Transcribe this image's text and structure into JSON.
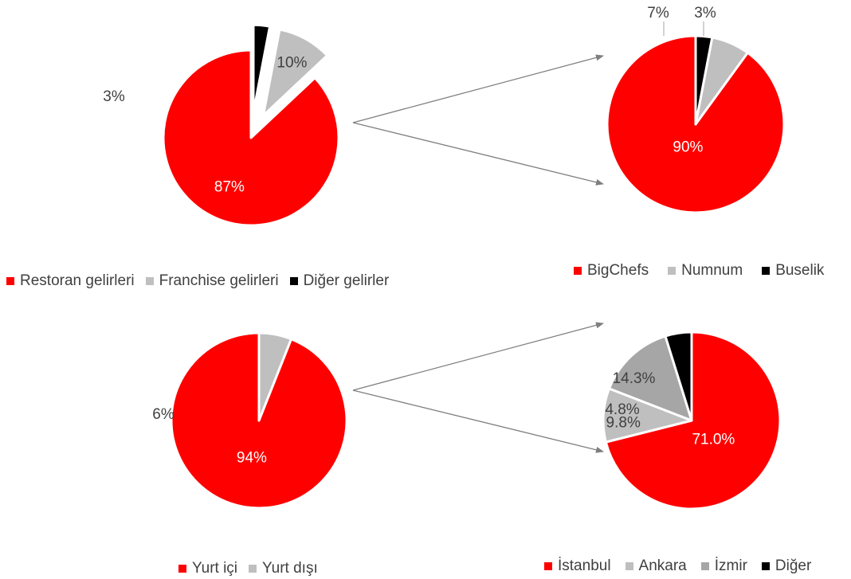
{
  "colors": {
    "red": "#ff0000",
    "light_gray": "#bfbfbf",
    "mid_gray": "#a6a6a6",
    "black": "#000000",
    "arrow": "#7f7f7f",
    "label_dark": "#404040",
    "label_light": "#ffffff"
  },
  "chart_data": [
    {
      "type": "pie",
      "categories": [
        "Restoran gelirleri",
        "Franchise gelirleri",
        "Diğer gelirler"
      ],
      "values": [
        87,
        10,
        3
      ],
      "labels": [
        "87%",
        "10%",
        "3%"
      ],
      "colors": [
        "#ff0000",
        "#bfbfbf",
        "#000000"
      ],
      "legend": "bottom"
    },
    {
      "type": "pie",
      "categories": [
        "BigChefs",
        "Numnum",
        "Buselik"
      ],
      "values": [
        90,
        7,
        3
      ],
      "labels": [
        "90%",
        "7%",
        "3%"
      ],
      "colors": [
        "#ff0000",
        "#bfbfbf",
        "#000000"
      ],
      "legend": "bottom"
    },
    {
      "type": "pie",
      "categories": [
        "Yurt içi",
        "Yurt dışı"
      ],
      "values": [
        94,
        6
      ],
      "labels": [
        "94%",
        "6%"
      ],
      "colors": [
        "#ff0000",
        "#bfbfbf"
      ],
      "legend": "bottom"
    },
    {
      "type": "pie",
      "categories": [
        "İstanbul",
        "Ankara",
        "İzmir",
        "Diğer"
      ],
      "values": [
        71.0,
        9.8,
        14.3,
        4.8
      ],
      "labels": [
        "71.0%",
        "9.8%",
        "14.3%",
        "4.8%"
      ],
      "colors": [
        "#ff0000",
        "#bfbfbf",
        "#a6a6a6",
        "#000000"
      ],
      "legend": "bottom"
    }
  ]
}
